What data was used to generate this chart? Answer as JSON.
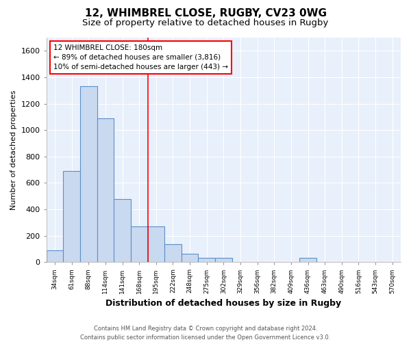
{
  "title1": "12, WHIMBREL CLOSE, RUGBY, CV23 0WG",
  "title2": "Size of property relative to detached houses in Rugby",
  "xlabel": "Distribution of detached houses by size in Rugby",
  "ylabel": "Number of detached properties",
  "categories": [
    "34sqm",
    "61sqm",
    "88sqm",
    "114sqm",
    "141sqm",
    "168sqm",
    "195sqm",
    "222sqm",
    "248sqm",
    "275sqm",
    "302sqm",
    "329sqm",
    "356sqm",
    "382sqm",
    "409sqm",
    "436sqm",
    "463sqm",
    "490sqm",
    "516sqm",
    "543sqm",
    "570sqm"
  ],
  "values": [
    90,
    690,
    1330,
    1090,
    480,
    270,
    270,
    135,
    65,
    30,
    30,
    0,
    0,
    0,
    0,
    30,
    0,
    0,
    0,
    0,
    0
  ],
  "bar_color": "#c9d9f0",
  "bar_edge_color": "#5b8fc9",
  "annotation_text": "12 WHIMBREL CLOSE: 180sqm\n← 89% of detached houses are smaller (3,816)\n10% of semi-detached houses are larger (443) →",
  "box_facecolor": "white",
  "box_edgecolor": "red",
  "ylim": [
    0,
    1700
  ],
  "yticks": [
    0,
    200,
    400,
    600,
    800,
    1000,
    1200,
    1400,
    1600
  ],
  "footer": "Contains HM Land Registry data © Crown copyright and database right 2024.\nContains public sector information licensed under the Open Government Licence v3.0.",
  "bg_color": "#e8f0fb",
  "grid_color": "white",
  "title1_fontsize": 11,
  "title2_fontsize": 9.5,
  "red_line_index": 6
}
